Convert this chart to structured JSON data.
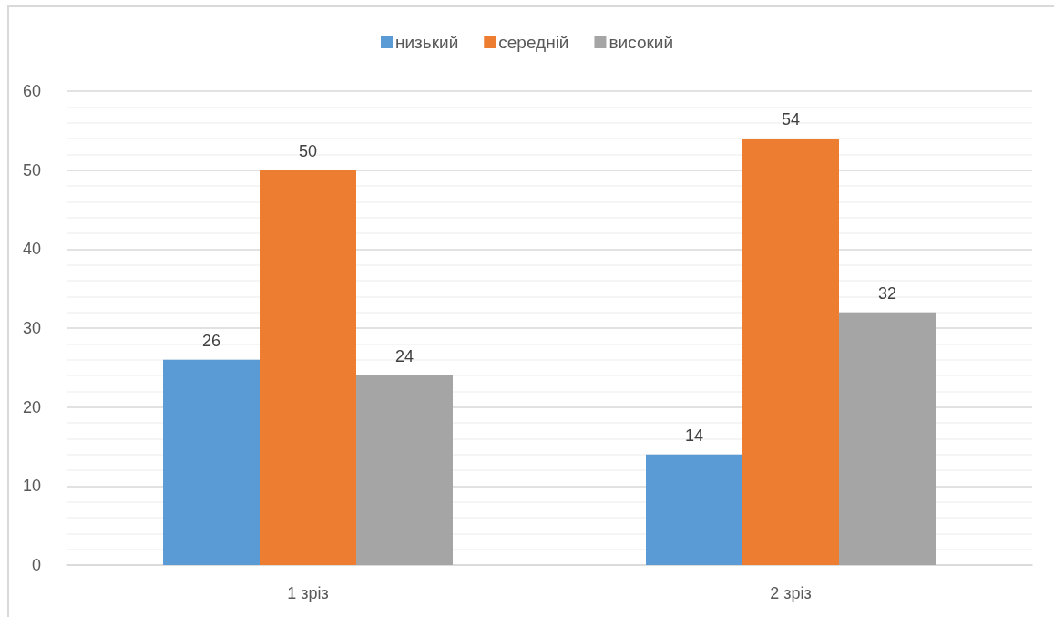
{
  "chart_data": {
    "type": "bar",
    "categories": [
      "1 зріз",
      "2 зріз"
    ],
    "series": [
      {
        "name": "низький",
        "color": "#5b9bd5",
        "values": [
          26,
          14
        ]
      },
      {
        "name": "середній",
        "color": "#ed7d31",
        "values": [
          50,
          54
        ]
      },
      {
        "name": "високий",
        "color": "#a5a5a5",
        "values": [
          24,
          32
        ]
      }
    ],
    "ylim": [
      0,
      60
    ],
    "yticks": [
      0,
      {
        "value": 2,
        "label": null
      },
      {
        "value": 4,
        "label": null
      },
      {
        "value": 6,
        "label": null
      },
      {
        "value": 8,
        "label": null
      },
      10,
      {
        "value": 12,
        "label": null
      },
      {
        "value": 14,
        "label": null
      },
      {
        "value": 16,
        "label": null
      },
      {
        "value": 18,
        "label": null
      },
      20,
      {
        "value": 22,
        "label": null
      },
      {
        "value": 24,
        "label": null
      },
      {
        "value": 26,
        "label": null
      },
      {
        "value": 28,
        "label": null
      },
      30,
      {
        "value": 32,
        "label": null
      },
      {
        "value": 34,
        "label": null
      },
      {
        "value": 36,
        "label": null
      },
      {
        "value": 38,
        "label": null
      },
      40,
      {
        "value": 42,
        "label": null
      },
      {
        "value": 44,
        "label": null
      },
      {
        "value": 46,
        "label": null
      },
      {
        "value": 48,
        "label": null
      },
      50,
      {
        "value": 52,
        "label": null
      },
      {
        "value": 54,
        "label": null
      },
      {
        "value": 56,
        "label": null
      },
      {
        "value": 58,
        "label": null
      },
      60
    ],
    "grid": "y",
    "legend": "top",
    "data_labels": true
  }
}
